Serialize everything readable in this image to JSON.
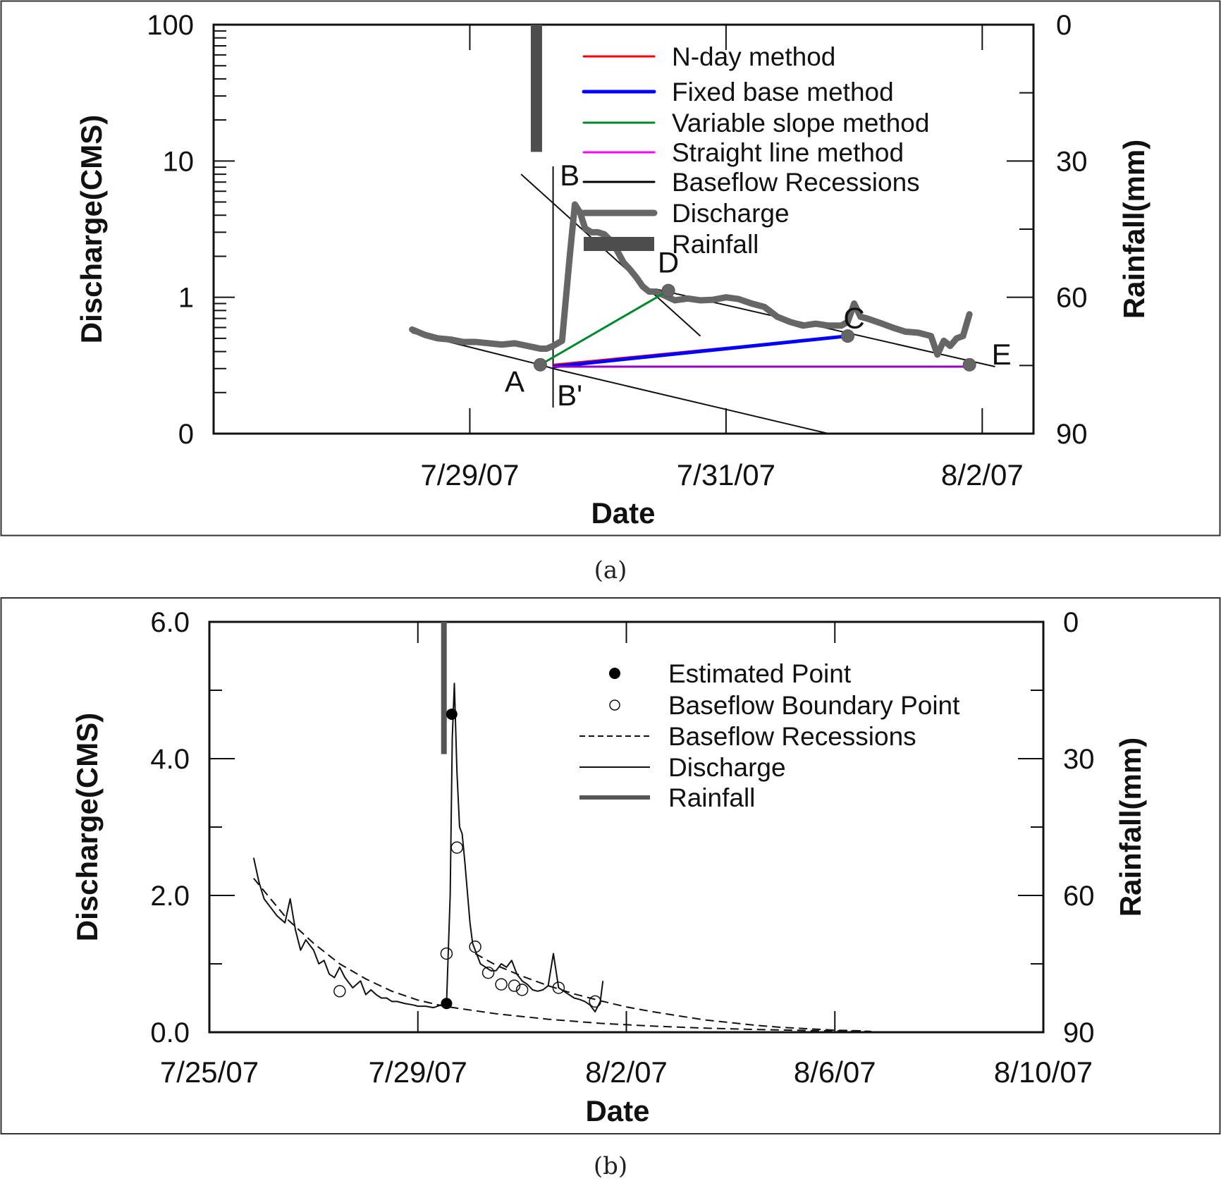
{
  "chart_data": [
    {
      "panel": "a",
      "type": "line",
      "caption": "(a)",
      "xlabel": "Date",
      "ylabel": "Discharge(CMS)",
      "y2label": "Rainfall(mm)",
      "yscale": "log",
      "ylim": [
        0.1,
        100
      ],
      "y_tick_labels": [
        "100",
        "10",
        "1",
        "0"
      ],
      "y_tick_values": [
        100,
        10,
        1,
        0.1
      ],
      "y2lim": [
        0,
        90
      ],
      "y2_inverted": true,
      "y2_ticks": [
        "0",
        "30",
        "60",
        "90"
      ],
      "y2_tick_values": [
        0,
        30,
        60,
        90
      ],
      "xlim_days": [
        -2.0,
        4.4
      ],
      "x_ticks": [
        "7/29/07",
        "7/31/07",
        "8/2/07"
      ],
      "x_tick_days": [
        0,
        2,
        4
      ],
      "x_day_origin": "7/29/07",
      "legend_position": "top-right",
      "legend": [
        {
          "label": "N-day method",
          "color": "#ff0000",
          "style": "thin-line"
        },
        {
          "label": "Fixed base method",
          "color": "#0000ff",
          "style": "line"
        },
        {
          "label": "Variable slope method",
          "color": "#008a2e",
          "style": "thin-line"
        },
        {
          "label": "Straight line method",
          "color": "#ff00ff",
          "style": "thin-line"
        },
        {
          "label": "Baseflow Recessions",
          "color": "#000000",
          "style": "thin-line"
        },
        {
          "label": "Discharge",
          "color": "#666666",
          "style": "thick-line"
        },
        {
          "label": "Rainfall",
          "color": "#4d4d4d",
          "style": "bar"
        }
      ],
      "rainfall": [
        {
          "day": 0.52,
          "mm": 28
        }
      ],
      "discharge": {
        "name": "Discharge",
        "x": [
          -0.45,
          -0.35,
          -0.25,
          -0.15,
          -0.05,
          0.05,
          0.15,
          0.25,
          0.35,
          0.45,
          0.55,
          0.6,
          0.65,
          0.72,
          0.78,
          0.82,
          0.86,
          0.9,
          0.95,
          1.0,
          1.05,
          1.1,
          1.15,
          1.2,
          1.25,
          1.3,
          1.35,
          1.4,
          1.45,
          1.5,
          1.6,
          1.7,
          1.8,
          1.9,
          2.0,
          2.1,
          2.2,
          2.3,
          2.4,
          2.5,
          2.6,
          2.7,
          2.8,
          2.9,
          2.95,
          3.0,
          3.05,
          3.1,
          3.2,
          3.3,
          3.4,
          3.5,
          3.6,
          3.65,
          3.7,
          3.75,
          3.8,
          3.85,
          3.9
        ],
        "y": [
          0.58,
          0.53,
          0.5,
          0.49,
          0.47,
          0.47,
          0.46,
          0.45,
          0.46,
          0.44,
          0.42,
          0.42,
          0.44,
          0.48,
          2.0,
          4.8,
          4.2,
          3.2,
          3.0,
          3.0,
          2.9,
          2.6,
          2.2,
          1.8,
          1.6,
          1.4,
          1.2,
          1.1,
          1.1,
          1.05,
          0.95,
          0.98,
          0.95,
          0.96,
          1.0,
          0.97,
          0.9,
          0.85,
          0.72,
          0.66,
          0.62,
          0.64,
          0.62,
          0.62,
          0.66,
          0.9,
          0.72,
          0.7,
          0.65,
          0.6,
          0.56,
          0.55,
          0.52,
          0.38,
          0.48,
          0.44,
          0.5,
          0.52,
          0.75
        ]
      },
      "points": [
        {
          "label": "A",
          "day": 0.55,
          "value": 0.32
        },
        {
          "label": "D",
          "day": 1.55,
          "value": 1.12
        },
        {
          "label": "C",
          "day": 2.95,
          "value": 0.52
        },
        {
          "label": "E",
          "day": 3.9,
          "value": 0.32
        }
      ],
      "labels": [
        {
          "text": "A",
          "day": 0.35,
          "value": 0.24
        },
        {
          "text": "B",
          "day": 0.78,
          "value": 7.8
        },
        {
          "text": "B'",
          "day": 0.78,
          "value": 0.19
        },
        {
          "text": "D",
          "day": 1.55,
          "value": 1.8
        },
        {
          "text": "C",
          "day": 3.0,
          "value": 0.7
        },
        {
          "text": "E",
          "day": 4.15,
          "value": 0.38
        }
      ],
      "vertical_line_day": 0.65,
      "recession_lines": [
        {
          "x": [
            -0.45,
            0.55,
            0.65,
            2.8
          ],
          "y": [
            0.55,
            0.32,
            0.3,
            0.1
          ]
        },
        {
          "x": [
            0.4,
            1.8
          ],
          "y": [
            8.0,
            0.52
          ]
        },
        {
          "x": [
            1.45,
            4.1
          ],
          "y": [
            1.15,
            0.31
          ]
        }
      ],
      "methods": [
        {
          "name": "N-day method",
          "color": "#ff0000",
          "x": [
            0.65,
            2.95
          ],
          "y": [
            0.32,
            0.52
          ]
        },
        {
          "name": "Fixed base method",
          "color": "#0000ff",
          "x": [
            0.65,
            2.95
          ],
          "y": [
            0.31,
            0.52
          ]
        },
        {
          "name": "Variable slope method",
          "color": "#008a2e",
          "x": [
            0.55,
            1.55
          ],
          "y": [
            0.32,
            1.12
          ]
        },
        {
          "name": "Straight line method",
          "color": "#9900cc",
          "x": [
            0.65,
            3.9
          ],
          "y": [
            0.31,
            0.31
          ]
        }
      ]
    },
    {
      "panel": "b",
      "type": "line",
      "caption": "(b)",
      "xlabel": "Date",
      "ylabel": "Discharge(CMS)",
      "y2label": "Rainfall(mm)",
      "ylim": [
        0,
        6
      ],
      "y_ticks": [
        "0.0",
        "2.0",
        "4.0",
        "6.0"
      ],
      "y_tick_values": [
        0,
        2,
        4,
        6
      ],
      "y2lim": [
        0,
        90
      ],
      "y2_inverted": true,
      "y2_ticks": [
        "0",
        "30",
        "60",
        "90"
      ],
      "y2_tick_values": [
        0,
        30,
        60,
        90
      ],
      "xlim_days": [
        0,
        16
      ],
      "x_ticks": [
        "7/25/07",
        "7/29/07",
        "8/2/07",
        "8/6/07",
        "8/10/07"
      ],
      "x_tick_days": [
        0,
        4,
        8,
        12,
        16
      ],
      "x_day_origin": "7/25/07",
      "legend_position": "top-right",
      "legend": [
        {
          "label": "Estimated Point",
          "marker": "filled-circle"
        },
        {
          "label": "Baseflow Boundary Point",
          "marker": "open-circle"
        },
        {
          "label": "Baseflow Recessions",
          "style": "dashed"
        },
        {
          "label": "Discharge",
          "style": "line"
        },
        {
          "label": "Rainfall",
          "style": "thick-line"
        }
      ],
      "rainfall": [
        {
          "day": 4.5,
          "mm": 29
        }
      ],
      "discharge": {
        "name": "Discharge",
        "x": [
          0.85,
          0.95,
          1.05,
          1.15,
          1.3,
          1.45,
          1.55,
          1.65,
          1.75,
          1.85,
          2.0,
          2.1,
          2.2,
          2.3,
          2.4,
          2.5,
          2.6,
          2.75,
          2.9,
          3.0,
          3.1,
          3.2,
          3.3,
          3.4,
          3.5,
          3.6,
          3.75,
          3.9,
          4.0,
          4.15,
          4.3,
          4.45,
          4.55,
          4.62,
          4.66,
          4.7,
          4.75,
          4.8,
          4.85,
          4.9,
          5.0,
          5.05,
          5.1,
          5.2,
          5.3,
          5.4,
          5.5,
          5.6,
          5.7,
          5.8,
          5.9,
          6.0,
          6.1,
          6.2,
          6.3,
          6.4,
          6.5,
          6.6,
          6.7,
          6.8,
          6.9,
          7.0,
          7.1,
          7.2,
          7.3,
          7.4,
          7.5,
          7.55
        ],
        "y": [
          2.55,
          2.2,
          1.95,
          1.85,
          1.7,
          1.6,
          1.95,
          1.5,
          1.2,
          1.35,
          1.2,
          1.0,
          1.05,
          0.85,
          0.8,
          0.95,
          0.8,
          0.65,
          0.75,
          0.55,
          0.62,
          0.55,
          0.5,
          0.5,
          0.45,
          0.45,
          0.42,
          0.4,
          0.38,
          0.38,
          0.36,
          0.4,
          0.42,
          2.0,
          4.3,
          5.1,
          3.8,
          3.0,
          2.9,
          2.5,
          1.6,
          1.3,
          1.2,
          1.0,
          0.95,
          0.9,
          0.9,
          1.0,
          0.95,
          1.05,
          0.85,
          0.75,
          0.7,
          0.62,
          0.6,
          0.62,
          0.68,
          1.15,
          0.65,
          0.6,
          0.55,
          0.5,
          0.48,
          0.45,
          0.4,
          0.3,
          0.45,
          0.75
        ]
      },
      "baseflow_recessions": [
        {
          "x": [
            0.85,
            1.5,
            2.0,
            2.5,
            3.0,
            3.5,
            4.0,
            4.5,
            5.5,
            6.5,
            7.5,
            8.5,
            9.5,
            10.5,
            11.5,
            12.5,
            12.7
          ],
          "y": [
            2.25,
            1.65,
            1.3,
            1.0,
            0.78,
            0.6,
            0.47,
            0.38,
            0.27,
            0.19,
            0.13,
            0.09,
            0.06,
            0.04,
            0.025,
            0.015,
            0.01
          ]
        },
        {
          "x": [
            5.1,
            5.5,
            6.0,
            6.5,
            7.0,
            7.5,
            8.0,
            8.5,
            9.0,
            9.5,
            10.0,
            10.5,
            11.0,
            11.5,
            12.0,
            12.5,
            12.7
          ],
          "y": [
            1.15,
            0.98,
            0.82,
            0.68,
            0.56,
            0.46,
            0.37,
            0.3,
            0.24,
            0.18,
            0.14,
            0.1,
            0.07,
            0.05,
            0.03,
            0.02,
            0.01
          ]
        }
      ],
      "estimated_points": [
        {
          "day": 4.55,
          "value": 0.42
        },
        {
          "day": 4.65,
          "value": 4.65
        }
      ],
      "boundary_points": [
        {
          "day": 2.5,
          "value": 0.6
        },
        {
          "day": 4.55,
          "value": 1.15
        },
        {
          "day": 4.75,
          "value": 2.7
        },
        {
          "day": 5.1,
          "value": 1.25
        },
        {
          "day": 5.35,
          "value": 0.87
        },
        {
          "day": 5.6,
          "value": 0.7
        },
        {
          "day": 5.85,
          "value": 0.68
        },
        {
          "day": 6.0,
          "value": 0.62
        },
        {
          "day": 6.7,
          "value": 0.65
        },
        {
          "day": 7.4,
          "value": 0.45
        }
      ]
    }
  ]
}
